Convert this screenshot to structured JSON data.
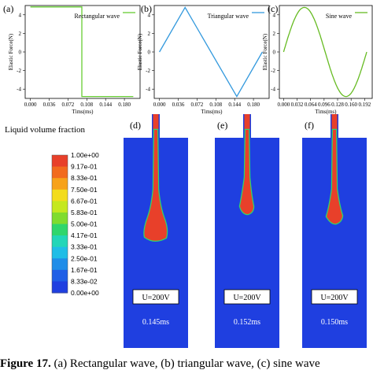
{
  "chart_data": [
    {
      "type": "line",
      "panel": "(a)",
      "ylabel": "Elastic Force(N)",
      "xlabel": "Tims(ms)",
      "legend": "Rectangular wave",
      "legend_position": "top-right",
      "color": "#66cc33",
      "xlim": [
        -0.01,
        0.21
      ],
      "ylim": [
        -5,
        5
      ],
      "xticks": [
        0.0,
        0.036,
        0.072,
        0.108,
        0.144,
        0.18
      ],
      "xtick_labels": [
        "0.000",
        "0.036",
        "0.072",
        "0.108",
        "0.144",
        "0.180"
      ],
      "yticks": [
        -4,
        -2,
        0,
        2,
        4
      ],
      "ytick_labels": [
        "-4",
        "-2",
        "0",
        "2",
        "4"
      ],
      "x": [
        0.0,
        0.0985,
        0.0985,
        0.197
      ],
      "y": [
        4.85,
        4.85,
        -4.8,
        -4.8
      ]
    },
    {
      "type": "line",
      "panel": "(b)",
      "ylabel": "Elastic Force(N)",
      "xlabel": "Tims(ms)",
      "legend": "Triangular wave",
      "legend_position": "top-right",
      "color": "#3399dd",
      "xlim": [
        -0.01,
        0.21
      ],
      "ylim": [
        -5,
        5
      ],
      "xticks": [
        0.0,
        0.036,
        0.072,
        0.108,
        0.144,
        0.18
      ],
      "xtick_labels": [
        "0.000",
        "0.036",
        "0.072",
        "0.108",
        "0.144",
        "0.180"
      ],
      "yticks": [
        -4,
        -2,
        0,
        2,
        4
      ],
      "ytick_labels": [
        "-4",
        "-2",
        "0",
        "2",
        "4"
      ],
      "x": [
        0.0,
        0.049,
        0.148,
        0.197
      ],
      "y": [
        0.0,
        4.8,
        -4.8,
        0.0
      ]
    },
    {
      "type": "line",
      "panel": "(c)",
      "ylabel": "Elastic Force(N)",
      "xlabel": "Tims(ms)",
      "legend": "Sine wave",
      "legend_position": "top-right",
      "color": "#66bb22",
      "xlim": [
        -0.01,
        0.21
      ],
      "ylim": [
        -5,
        5
      ],
      "xticks": [
        0.0,
        0.032,
        0.064,
        0.096,
        0.128,
        0.16,
        0.192
      ],
      "xtick_labels": [
        "0.000",
        "0.032",
        "0.064",
        "0.096",
        "0.128",
        "0.160",
        "0.192"
      ],
      "yticks": [
        -4,
        -2,
        0,
        2,
        4
      ],
      "ytick_labels": [
        "-4",
        "-2",
        "0",
        "2",
        "4"
      ],
      "function": "sine",
      "amplitude": 4.8,
      "period_ms": 0.197
    }
  ],
  "colorbar": {
    "title": "Liquid volume fraction",
    "labels": [
      "1.00e+00",
      "9.17e-01",
      "8.33e-01",
      "7.50e-01",
      "6.67e-01",
      "5.83e-01",
      "5.00e-01",
      "4.17e-01",
      "3.33e-01",
      "2.50e-01",
      "1.67e-01",
      "8.33e-02",
      "0.00e+00"
    ],
    "colors": [
      "#e8402a",
      "#f26b1e",
      "#f7a21a",
      "#f3dc1c",
      "#c5e81f",
      "#7fdc2e",
      "#2fd66c",
      "#22d6b8",
      "#1fbde6",
      "#1f8de8",
      "#1f5fe6",
      "#1f3fe0"
    ]
  },
  "simulations": [
    {
      "panel": "(d)",
      "voltage_label": "U=200V",
      "time": "0.145ms"
    },
    {
      "panel": "(e)",
      "voltage_label": "U=200V",
      "time": "0.152ms"
    },
    {
      "panel": "(f)",
      "voltage_label": "U=200V",
      "time": "0.150ms"
    }
  ],
  "caption": {
    "prefix": "Figure 17.",
    "text": " (a) Rectangular wave, (b) triangular wave, (c) sine wave"
  }
}
